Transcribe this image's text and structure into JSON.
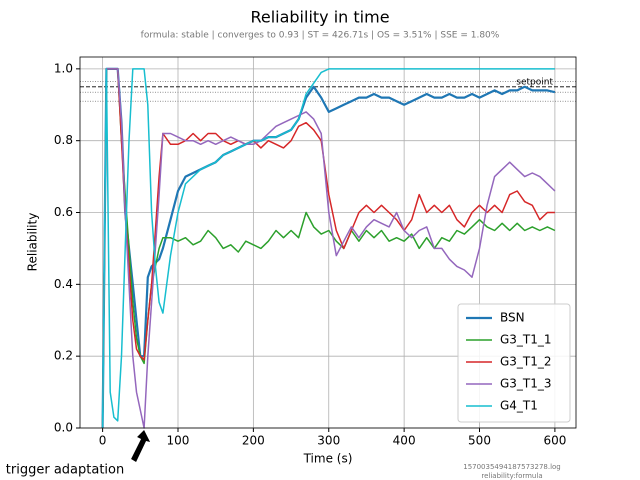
{
  "chart_data": {
    "type": "line",
    "title": "Reliability in time",
    "subtitle": "formula: stable | converges to 0.93 | ST = 426.71s | OS = 3.51% | SSE = 1.80%",
    "x_label": "Time (s)",
    "y_label": "Reliability",
    "x": [
      0,
      5,
      10,
      15,
      20,
      25,
      30,
      35,
      40,
      45,
      50,
      55,
      60,
      65,
      70,
      75,
      80,
      90,
      100,
      110,
      120,
      130,
      140,
      150,
      160,
      170,
      180,
      190,
      200,
      210,
      220,
      230,
      240,
      250,
      260,
      270,
      280,
      290,
      300,
      310,
      320,
      330,
      340,
      350,
      360,
      370,
      380,
      390,
      400,
      410,
      420,
      430,
      440,
      450,
      460,
      470,
      480,
      490,
      500,
      510,
      520,
      530,
      540,
      550,
      560,
      570,
      580,
      590,
      600
    ],
    "series": [
      {
        "name": "BSN",
        "color": "#1f77b4",
        "width": 2.2,
        "values": [
          0,
          1,
          1,
          1,
          1,
          0.85,
          0.6,
          0.5,
          0.4,
          0.3,
          0.2,
          0.2,
          0.42,
          0.45,
          0.46,
          0.47,
          0.5,
          0.58,
          0.66,
          0.7,
          0.71,
          0.72,
          0.73,
          0.74,
          0.76,
          0.77,
          0.78,
          0.79,
          0.8,
          0.8,
          0.81,
          0.81,
          0.82,
          0.83,
          0.86,
          0.92,
          0.95,
          0.92,
          0.88,
          0.89,
          0.9,
          0.91,
          0.92,
          0.92,
          0.93,
          0.92,
          0.92,
          0.91,
          0.9,
          0.91,
          0.92,
          0.93,
          0.92,
          0.92,
          0.93,
          0.92,
          0.92,
          0.93,
          0.92,
          0.93,
          0.94,
          0.93,
          0.94,
          0.94,
          0.95,
          0.94,
          0.94,
          0.94,
          0.935
        ]
      },
      {
        "name": "G3_T1_1",
        "color": "#2ca02c",
        "width": 1.5,
        "values": [
          0,
          1,
          1,
          1,
          1,
          0.8,
          0.65,
          0.5,
          0.35,
          0.25,
          0.2,
          0.18,
          0.3,
          0.4,
          0.45,
          0.5,
          0.53,
          0.53,
          0.52,
          0.53,
          0.51,
          0.52,
          0.55,
          0.53,
          0.5,
          0.51,
          0.49,
          0.52,
          0.51,
          0.5,
          0.52,
          0.55,
          0.53,
          0.55,
          0.53,
          0.6,
          0.56,
          0.54,
          0.55,
          0.52,
          0.5,
          0.55,
          0.52,
          0.55,
          0.53,
          0.55,
          0.52,
          0.53,
          0.52,
          0.54,
          0.5,
          0.53,
          0.5,
          0.53,
          0.52,
          0.55,
          0.54,
          0.56,
          0.58,
          0.56,
          0.55,
          0.57,
          0.55,
          0.57,
          0.55,
          0.56,
          0.55,
          0.56,
          0.55
        ]
      },
      {
        "name": "G3_T1_2",
        "color": "#d62728",
        "width": 1.5,
        "values": [
          0,
          1,
          1,
          1,
          1,
          0.8,
          0.6,
          0.45,
          0.3,
          0.22,
          0.2,
          0.19,
          0.3,
          0.4,
          0.55,
          0.7,
          0.82,
          0.79,
          0.79,
          0.8,
          0.82,
          0.8,
          0.82,
          0.82,
          0.8,
          0.79,
          0.8,
          0.79,
          0.8,
          0.78,
          0.8,
          0.79,
          0.78,
          0.8,
          0.84,
          0.85,
          0.83,
          0.8,
          0.65,
          0.55,
          0.5,
          0.55,
          0.6,
          0.62,
          0.6,
          0.62,
          0.6,
          0.58,
          0.55,
          0.58,
          0.65,
          0.6,
          0.62,
          0.6,
          0.62,
          0.58,
          0.56,
          0.6,
          0.62,
          0.6,
          0.62,
          0.6,
          0.65,
          0.66,
          0.63,
          0.62,
          0.58,
          0.6,
          0.6
        ]
      },
      {
        "name": "G3_T1_3",
        "color": "#9467bd",
        "width": 1.5,
        "values": [
          0,
          1,
          1,
          1,
          1,
          0.85,
          0.6,
          0.4,
          0.2,
          0.1,
          0.05,
          0,
          0.2,
          0.35,
          0.5,
          0.65,
          0.82,
          0.82,
          0.81,
          0.8,
          0.8,
          0.79,
          0.8,
          0.79,
          0.8,
          0.81,
          0.8,
          0.79,
          0.79,
          0.8,
          0.82,
          0.84,
          0.85,
          0.86,
          0.87,
          0.88,
          0.86,
          0.82,
          0.6,
          0.48,
          0.52,
          0.56,
          0.53,
          0.56,
          0.58,
          0.57,
          0.56,
          0.6,
          0.55,
          0.53,
          0.55,
          0.56,
          0.5,
          0.5,
          0.47,
          0.45,
          0.44,
          0.42,
          0.5,
          0.62,
          0.7,
          0.72,
          0.74,
          0.72,
          0.7,
          0.71,
          0.7,
          0.68,
          0.66
        ]
      },
      {
        "name": "G4_T1",
        "color": "#17becf",
        "width": 1.5,
        "values": [
          0,
          1,
          0.1,
          0.03,
          0.02,
          0.2,
          0.5,
          0.8,
          1,
          1,
          1,
          1,
          0.9,
          0.6,
          0.45,
          0.35,
          0.32,
          0.48,
          0.6,
          0.68,
          0.7,
          0.72,
          0.73,
          0.74,
          0.76,
          0.77,
          0.78,
          0.79,
          0.8,
          0.8,
          0.81,
          0.81,
          0.82,
          0.83,
          0.86,
          0.93,
          0.96,
          0.99,
          1,
          1,
          1,
          1,
          1,
          1,
          1,
          1,
          1,
          1,
          1,
          1,
          1,
          1,
          1,
          1,
          1,
          1,
          1,
          1,
          1,
          1,
          1,
          1,
          1,
          1,
          1,
          1,
          1,
          1,
          1
        ]
      }
    ],
    "xlim": [
      -30,
      628
    ],
    "ylim": [
      0,
      1.033
    ],
    "xticks": [
      0,
      100,
      200,
      300,
      400,
      500,
      600
    ],
    "yticks": [
      {
        "value": 0,
        "label": "0.0"
      },
      0.2,
      0.4,
      0.6,
      0.8,
      {
        "value": 1,
        "label": "1.0"
      }
    ],
    "grid": true,
    "legend": "lower right",
    "setpoint": {
      "label": "setpoint",
      "value": 0.95
    },
    "tolerance_lines": [
      0.91,
      0.935,
      0.965
    ],
    "annotation": {
      "text": "trigger adaptation",
      "x": 55
    },
    "footer": [
      "1570035494187573278.log",
      "reliability:formula"
    ]
  }
}
